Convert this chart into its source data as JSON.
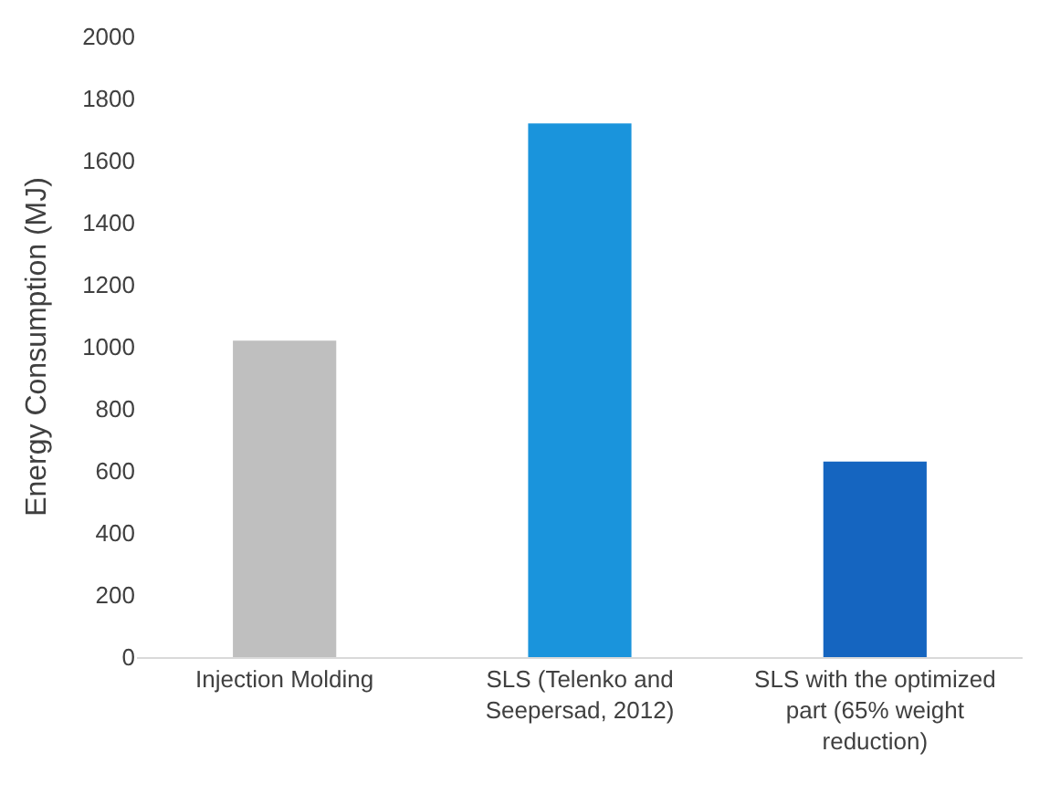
{
  "chart_data": {
    "type": "bar",
    "categories": [
      "Injection Molding",
      "SLS (Telenko and Seepersad, 2012)",
      "SLS with the optimized part (65% weight reduction)"
    ],
    "values": [
      1020,
      1720,
      630
    ],
    "colors": [
      "#bfbfbf",
      "#1a94dc",
      "#1565c0"
    ],
    "ylabel": "Energy Consumption (MJ)",
    "ylim": [
      0,
      2000
    ],
    "yticks": [
      0,
      200,
      400,
      600,
      800,
      1000,
      1200,
      1400,
      1600,
      1800,
      2000
    ],
    "grid": false
  }
}
